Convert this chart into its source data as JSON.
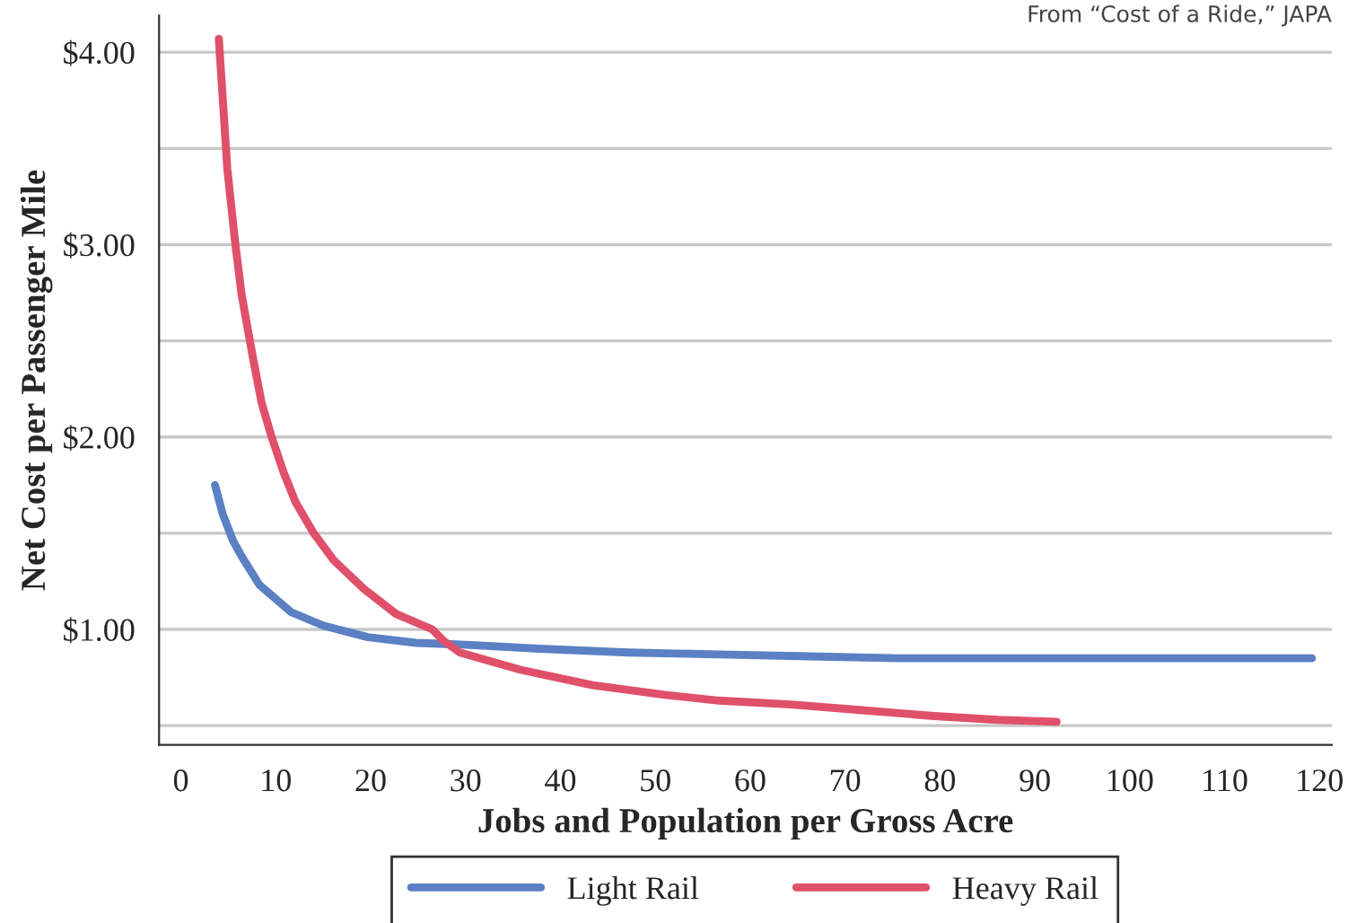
{
  "chart_data": {
    "type": "line",
    "xlabel": "Jobs and Population per Gross Acre",
    "ylabel": "Net Cost per Passenger Mile",
    "annotations": [
      "From “Cost of a Ride,” JAPA"
    ],
    "xlim": [
      -2.3,
      121.3
    ],
    "xticks": [
      0,
      10,
      20,
      30,
      40,
      50,
      60,
      70,
      80,
      90,
      100,
      110,
      120
    ],
    "ylim": [
      0.4,
      4.19
    ],
    "yticks": [
      {
        "value": 0.5,
        "label": null
      },
      {
        "value": 1.0,
        "label": "$1.00"
      },
      {
        "value": 1.5,
        "label": null
      },
      {
        "value": 2.0,
        "label": "$2.00"
      },
      {
        "value": 2.5,
        "label": null
      },
      {
        "value": 3.0,
        "label": "$3.00"
      },
      {
        "value": 3.5,
        "label": null
      },
      {
        "value": 4.0,
        "label": "$4.00"
      }
    ],
    "grid": "y",
    "legend": "bottom",
    "marker": "none",
    "line_style": "solid",
    "series": [
      {
        "name": "Light Rail",
        "color": "#5b80c4",
        "x": [
          3.6,
          4.4,
          5.5,
          6.4,
          8.3,
          11.6,
          15.0,
          19.7,
          24.8,
          30.1,
          37.7,
          47.2,
          56.7,
          66.2,
          75.6,
          94.6,
          119.2
        ],
        "values": [
          1.75,
          1.6,
          1.46,
          1.38,
          1.23,
          1.09,
          1.02,
          0.96,
          0.93,
          0.92,
          0.9,
          0.88,
          0.87,
          0.86,
          0.85,
          0.85,
          0.85
        ]
      },
      {
        "name": "Heavy Rail",
        "color": "#e0506a",
        "x": [
          4.0,
          4.9,
          5.7,
          6.4,
          7.6,
          8.5,
          9.5,
          10.8,
          12.1,
          14.0,
          16.1,
          19.3,
          22.7,
          26.5,
          27.7,
          29.4,
          35.8,
          43.4,
          51.0,
          56.7,
          64.3,
          71.8,
          79.4,
          86.1,
          92.3
        ],
        "values": [
          4.07,
          3.39,
          3.02,
          2.74,
          2.41,
          2.18,
          2.01,
          1.82,
          1.66,
          1.5,
          1.36,
          1.21,
          1.08,
          1.0,
          0.94,
          0.88,
          0.79,
          0.71,
          0.66,
          0.63,
          0.61,
          0.58,
          0.55,
          0.53,
          0.52
        ]
      }
    ]
  }
}
